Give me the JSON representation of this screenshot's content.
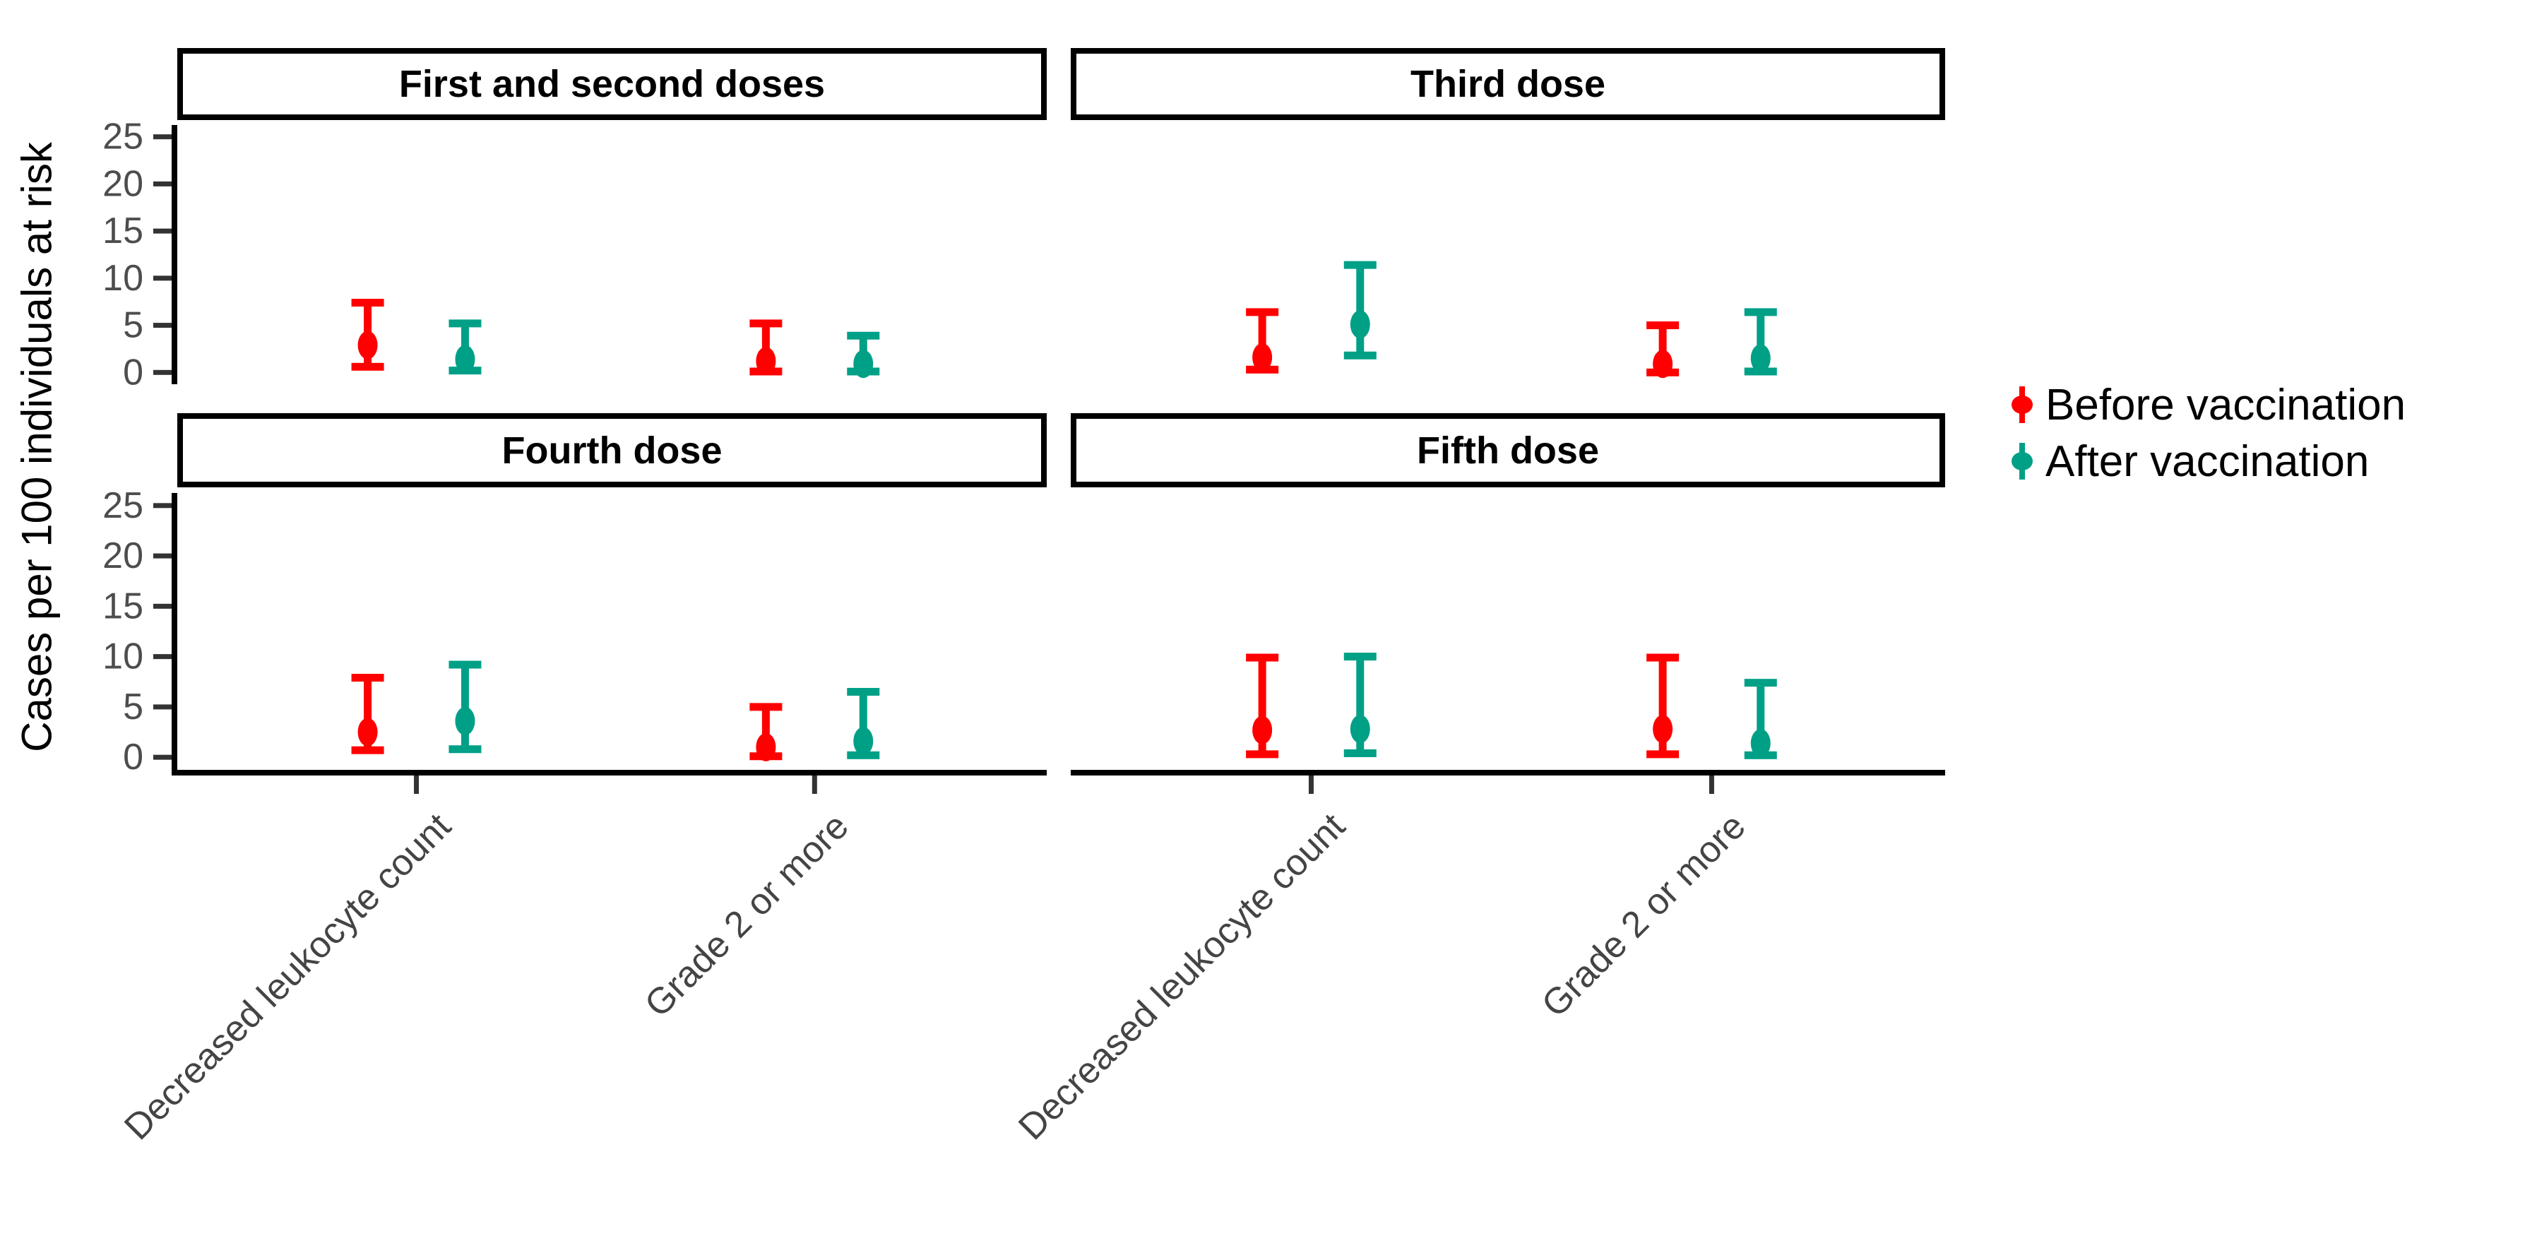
{
  "y_axis": {
    "title": "Cases per 100 individuals at risk",
    "tick_labels": [
      "0",
      "5",
      "10",
      "15",
      "20",
      "25"
    ]
  },
  "x_axis": {
    "categories": [
      "Decreased leukocyte count",
      "Grade 2 or more"
    ]
  },
  "facets": [
    {
      "title": "First and second doses"
    },
    {
      "title": "Third dose"
    },
    {
      "title": "Fourth dose"
    },
    {
      "title": "Fifth dose"
    }
  ],
  "legend": {
    "items": [
      {
        "label": "Before vaccination",
        "color": "#ff0000"
      },
      {
        "label": "After vaccination",
        "color": "#00a087"
      }
    ]
  },
  "colors": {
    "before": "#ff0000",
    "after": "#00a087",
    "axis_text": "#4d4d4d",
    "tick_mark": "#333333",
    "spine": "#000000"
  },
  "chart_data": {
    "type": "pointrange",
    "title": "",
    "xlabel": "",
    "ylabel": "Cases per 100 individuals at risk",
    "ylim": [
      0,
      25
    ],
    "yticks": [
      0,
      5,
      10,
      15,
      20,
      25
    ],
    "grid": false,
    "legend_position": "right",
    "categories": [
      "Decreased leukocyte count",
      "Grade 2 or more"
    ],
    "series_names": [
      "Before vaccination",
      "After vaccination"
    ],
    "facets": [
      {
        "title": "First and second doses",
        "points": [
          {
            "category": "Decreased leukocyte count",
            "series": "Before vaccination",
            "value": 2.9,
            "lower": 0.6,
            "upper": 7.4
          },
          {
            "category": "Decreased leukocyte count",
            "series": "After vaccination",
            "value": 1.4,
            "lower": 0.2,
            "upper": 5.2
          },
          {
            "category": "Grade 2 or more",
            "series": "Before vaccination",
            "value": 1.2,
            "lower": 0.1,
            "upper": 5.2
          },
          {
            "category": "Grade 2 or more",
            "series": "After vaccination",
            "value": 0.9,
            "lower": 0.1,
            "upper": 3.9
          }
        ]
      },
      {
        "title": "Third dose",
        "points": [
          {
            "category": "Decreased leukocyte count",
            "series": "Before vaccination",
            "value": 1.6,
            "lower": 0.3,
            "upper": 6.4
          },
          {
            "category": "Decreased leukocyte count",
            "series": "After vaccination",
            "value": 5.1,
            "lower": 1.8,
            "upper": 11.4
          },
          {
            "category": "Grade 2 or more",
            "series": "Before vaccination",
            "value": 0.9,
            "lower": 0.0,
            "upper": 5.0
          },
          {
            "category": "Grade 2 or more",
            "series": "After vaccination",
            "value": 1.5,
            "lower": 0.1,
            "upper": 6.4
          }
        ]
      },
      {
        "title": "Fourth dose",
        "points": [
          {
            "category": "Decreased leukocyte count",
            "series": "Before vaccination",
            "value": 2.5,
            "lower": 0.7,
            "upper": 7.9
          },
          {
            "category": "Decreased leukocyte count",
            "series": "After vaccination",
            "value": 3.6,
            "lower": 0.8,
            "upper": 9.2
          },
          {
            "category": "Grade 2 or more",
            "series": "Before vaccination",
            "value": 1.0,
            "lower": 0.1,
            "upper": 5.0
          },
          {
            "category": "Grade 2 or more",
            "series": "After vaccination",
            "value": 1.6,
            "lower": 0.2,
            "upper": 6.5
          }
        ]
      },
      {
        "title": "Fifth dose",
        "points": [
          {
            "category": "Decreased leukocyte count",
            "series": "Before vaccination",
            "value": 2.7,
            "lower": 0.3,
            "upper": 9.9
          },
          {
            "category": "Decreased leukocyte count",
            "series": "After vaccination",
            "value": 2.8,
            "lower": 0.4,
            "upper": 10.0
          },
          {
            "category": "Grade 2 or more",
            "series": "Before vaccination",
            "value": 2.8,
            "lower": 0.3,
            "upper": 9.9
          },
          {
            "category": "Grade 2 or more",
            "series": "After vaccination",
            "value": 1.4,
            "lower": 0.2,
            "upper": 7.4
          }
        ]
      }
    ]
  }
}
